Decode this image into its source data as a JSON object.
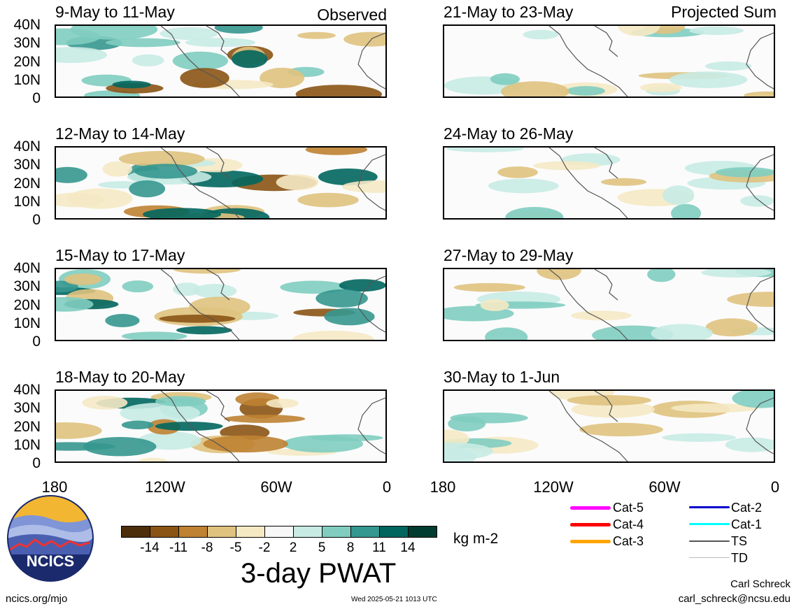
{
  "header": {
    "left_tag": "Observed",
    "right_tag": "Projected Sum"
  },
  "panels_left": [
    {
      "title": "9-May to 11-May"
    },
    {
      "title": "12-May to 14-May"
    },
    {
      "title": "15-May to 17-May"
    },
    {
      "title": "18-May to 20-May"
    }
  ],
  "panels_right": [
    {
      "title": "21-May to 23-May"
    },
    {
      "title": "24-May to 26-May"
    },
    {
      "title": "27-May to 29-May"
    },
    {
      "title": "30-May to 1-Jun"
    }
  ],
  "lat_labels": [
    "40N",
    "30N",
    "20N",
    "10N",
    "0"
  ],
  "lon_labels": [
    "180",
    "120W",
    "60W",
    "0"
  ],
  "colorbar": {
    "ticks": [
      "-14",
      "-11",
      "-8",
      "-5",
      "-2",
      "2",
      "5",
      "8",
      "11",
      "14"
    ],
    "colors": [
      "#4d2e0b",
      "#8a5415",
      "#bf8232",
      "#dfc27e",
      "#f5e9c4",
      "#f7f7f7",
      "#c8ebe4",
      "#80cdc0",
      "#35978f",
      "#01665e",
      "#003c30"
    ],
    "units": "kg m-2",
    "title": "3-day PWAT"
  },
  "legend": {
    "items": [
      {
        "label": "Cat-5",
        "color": "#ff00ff"
      },
      {
        "label": "Cat-4",
        "color": "#ff0000"
      },
      {
        "label": "Cat-3",
        "color": "#ffa500"
      },
      {
        "label": "Cat-2",
        "color": "#0000cc"
      },
      {
        "label": "Cat-1",
        "color": "#00ffff"
      },
      {
        "label": "TS",
        "color": "#555555"
      },
      {
        "label": "TD",
        "color": "#bbbbbb"
      }
    ]
  },
  "footer": {
    "logo_text": "NCICS",
    "site": "ncics.org/mjo",
    "timestamp": "Wed 2025-05-21 1013 UTC",
    "author": "Carl Schreck",
    "email": "carl_schreck@ncsu.edu"
  }
}
